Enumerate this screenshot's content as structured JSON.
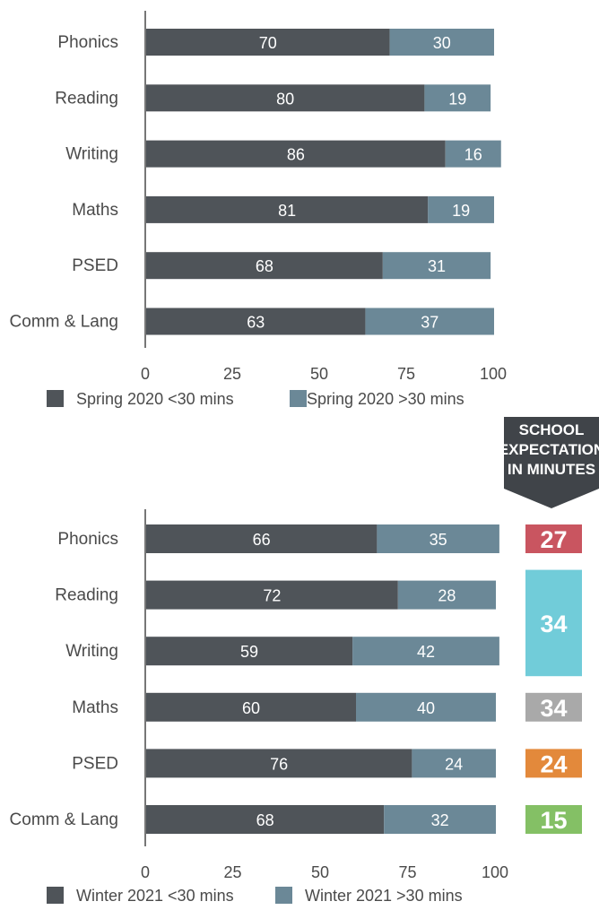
{
  "chart_data": [
    {
      "type": "bar",
      "orientation": "horizontal",
      "stacked": true,
      "categories": [
        "Phonics",
        "Reading",
        "Writing",
        "Maths",
        "PSED",
        "Comm & Lang"
      ],
      "series": [
        {
          "name": "Spring 2020 <30 mins",
          "values": [
            70,
            80,
            86,
            81,
            68,
            63
          ],
          "color": "#4f5459"
        },
        {
          "name": "Spring 2020 >30 mins",
          "values": [
            30,
            19,
            16,
            19,
            31,
            37
          ],
          "color": "#6b8897"
        }
      ],
      "xticks": [
        "0",
        "25",
        "50",
        "75",
        "100"
      ],
      "xlim": [
        0,
        100
      ],
      "grid": false,
      "legend_position": "bottom"
    },
    {
      "type": "bar",
      "orientation": "horizontal",
      "stacked": true,
      "categories": [
        "Phonics",
        "Reading",
        "Writing",
        "Maths",
        "PSED",
        "Comm & Lang"
      ],
      "series": [
        {
          "name": "Winter 2021 <30 mins",
          "values": [
            66,
            72,
            59,
            60,
            76,
            68
          ],
          "color": "#4f5459"
        },
        {
          "name": "Winter 2021 >30 mins",
          "values": [
            35,
            28,
            42,
            40,
            24,
            32
          ],
          "color": "#6b8897"
        }
      ],
      "xticks": [
        "0",
        "25",
        "50",
        "75",
        "100"
      ],
      "xlim": [
        0,
        100
      ],
      "grid": false,
      "legend_position": "bottom"
    }
  ],
  "school_expectation": {
    "header_lines": [
      "SCHOOL",
      "EXPECTATION",
      "IN MINUTES"
    ],
    "header_color": "#404449",
    "badges": [
      {
        "value": "27",
        "color": "#c95560",
        "rows": [
          "Phonics"
        ]
      },
      {
        "value": "34",
        "color": "#71ccd9",
        "rows": [
          "Reading",
          "Writing"
        ]
      },
      {
        "value": "34",
        "color": "#a9a9a9",
        "rows": [
          "Maths"
        ]
      },
      {
        "value": "24",
        "color": "#e3893b",
        "rows": [
          "PSED"
        ]
      },
      {
        "value": "15",
        "color": "#84c065",
        "rows": [
          "Comm & Lang"
        ]
      }
    ]
  }
}
